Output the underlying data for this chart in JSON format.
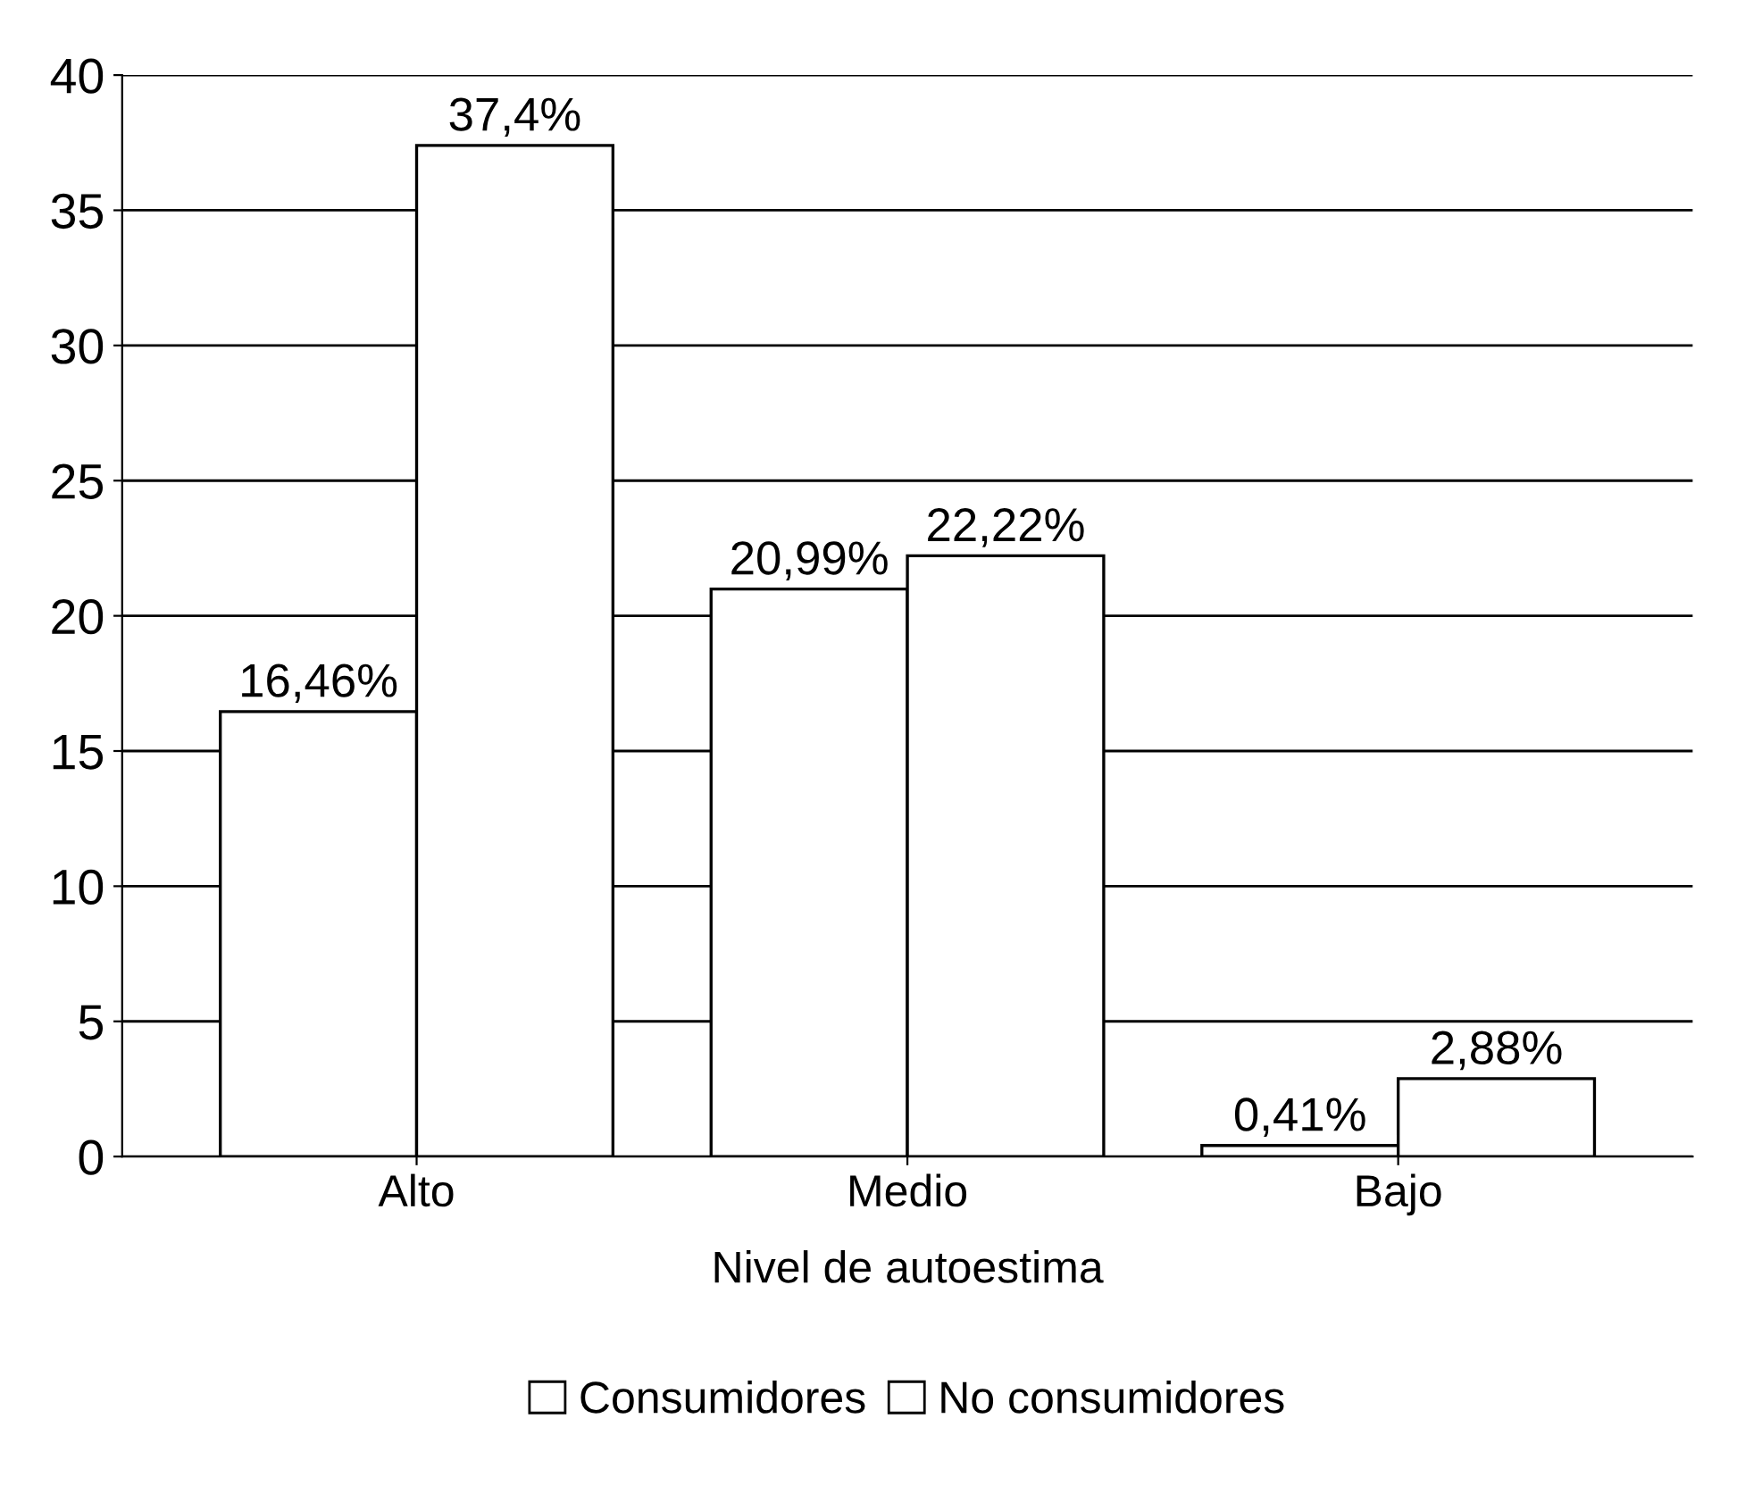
{
  "chart_data": {
    "type": "bar",
    "categories": [
      "Alto",
      "Medio",
      "Bajo"
    ],
    "xlabel": "Nivel de autoestima",
    "series": [
      {
        "name": "Consumidores",
        "color": "#ffffff",
        "values": [
          16.46,
          20.99,
          0.41
        ],
        "value_labels": [
          "16,46%",
          "20,99%",
          "0,41%"
        ]
      },
      {
        "name": "No consumidores",
        "color": "#ffffff",
        "values": [
          37.4,
          22.22,
          2.88
        ],
        "value_labels": [
          "37,4%",
          "22,22%",
          "2,88%"
        ]
      }
    ],
    "ylim": [
      0,
      40
    ],
    "yticks": [
      0,
      5,
      10,
      15,
      20,
      25,
      30,
      35,
      40
    ],
    "grid": "y",
    "legend": "bottom"
  }
}
